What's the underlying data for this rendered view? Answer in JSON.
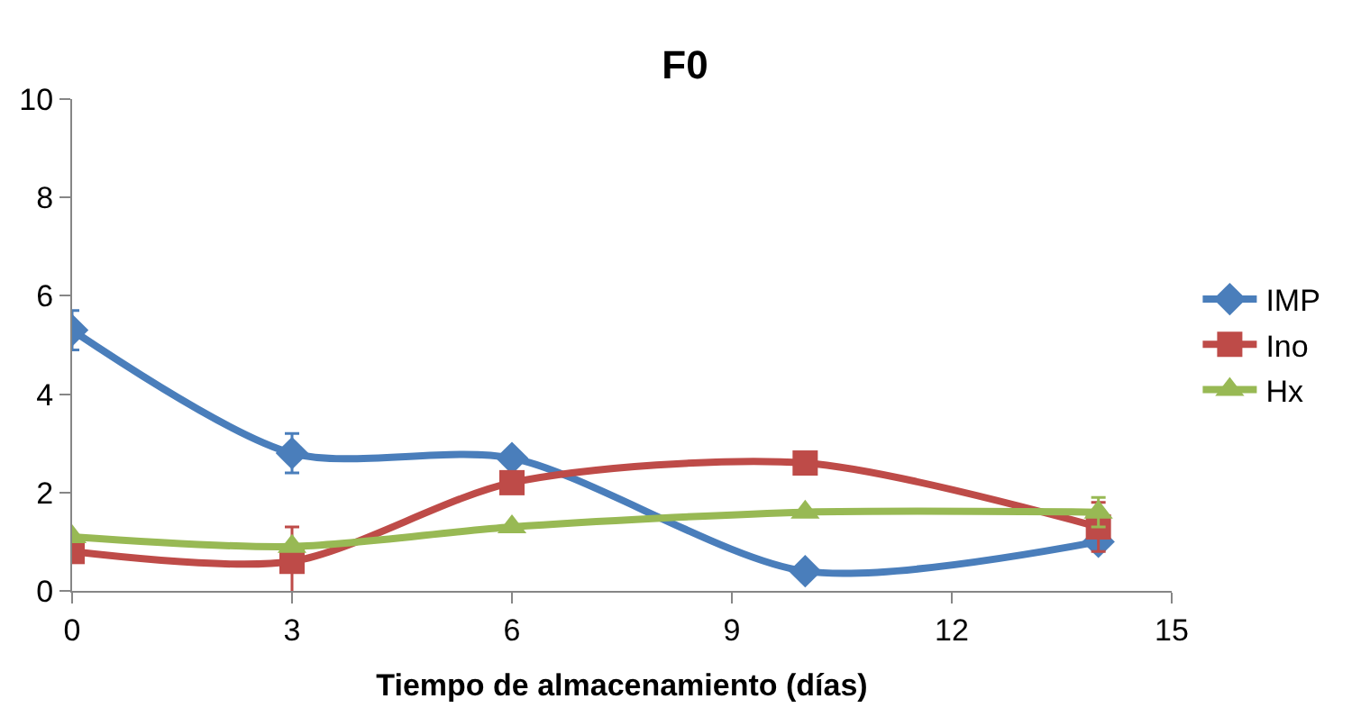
{
  "chart_data": {
    "type": "line",
    "title": "F0",
    "xlabel": "Tiempo de almacenamiento (días)",
    "x": [
      0,
      3,
      6,
      10,
      14
    ],
    "series": [
      {
        "name": "IMP",
        "color": "#4a7ebb",
        "values": [
          5.3,
          2.8,
          2.7,
          0.4,
          1.0
        ],
        "marker": "diamond",
        "errors": [
          0.4,
          0.4,
          null,
          null,
          null
        ]
      },
      {
        "name": "Ino",
        "color": "#be4b48",
        "values": [
          0.8,
          0.6,
          2.2,
          2.6,
          1.3
        ],
        "marker": "square",
        "errors": [
          null,
          0.7,
          null,
          null,
          0.5
        ]
      },
      {
        "name": "Hx",
        "color": "#98b954",
        "values": [
          1.1,
          0.9,
          1.3,
          1.6,
          1.6
        ],
        "marker": "triangle",
        "errors": [
          null,
          null,
          null,
          null,
          0.3
        ]
      }
    ],
    "xlim": [
      0,
      15
    ],
    "xticks": [
      0,
      3,
      6,
      9,
      12,
      15
    ],
    "ylim": [
      0,
      10
    ],
    "yticks": [
      0,
      2,
      4,
      6,
      8,
      10
    ],
    "legend": "right"
  }
}
